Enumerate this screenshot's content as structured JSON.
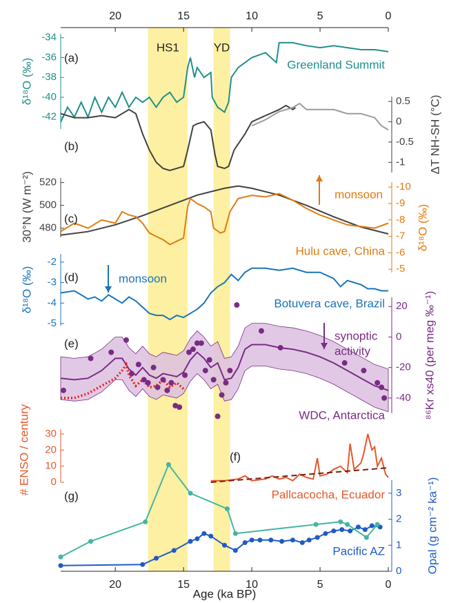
{
  "chart_data": [
    {
      "type": "line",
      "y_axis_side": "left",
      "ylabel": "δ¹⁸O (‰)",
      "ylim": [
        -43.2,
        -33.6
      ],
      "yticks": [
        -42,
        -40,
        -38,
        -36,
        -34
      ],
      "xlim": [
        24,
        0
      ],
      "xticks": [
        20,
        15,
        10,
        5,
        0
      ],
      "bands": [
        {
          "label": "HS1",
          "range": [
            17.6,
            14.7
          ],
          "color": "#fdf0a2"
        },
        {
          "label": "YD",
          "range": [
            12.8,
            11.6
          ],
          "color": "#fdf0a2"
        }
      ],
      "series": [
        {
          "color": "#1f8f8c",
          "x": [
            24,
            23.5,
            23,
            22.5,
            22,
            21.5,
            21,
            20.5,
            20,
            19.5,
            19,
            18.5,
            18,
            17.5,
            17,
            16.5,
            16,
            15.5,
            15,
            14.7,
            14.5,
            14.2,
            14,
            13.5,
            13,
            12.9,
            12.5,
            12,
            11.7,
            11.5,
            11,
            10.5,
            10,
            9,
            8.2,
            8,
            7,
            6,
            5,
            4,
            3,
            2,
            1,
            0
          ],
          "values": [
            -42.5,
            -41,
            -42,
            -40.5,
            -42,
            -40,
            -41.5,
            -40,
            -41,
            -39.5,
            -41,
            -40,
            -40.5,
            -40,
            -41,
            -40,
            -39.5,
            -40.5,
            -40,
            -37,
            -36,
            -38,
            -37,
            -38,
            -37.5,
            -40,
            -41,
            -41.5,
            -40.5,
            -38,
            -37,
            -36.5,
            -36,
            -35.5,
            -36.5,
            -34.5,
            -34.5,
            -34.8,
            -35,
            -34.8,
            -35,
            -35.2,
            -35.2,
            -35.4
          ]
        }
      ],
      "annotations": [
        {
          "text": "(a)",
          "color": "#222"
        },
        {
          "text": "Greenland Summit",
          "color": "#1f8f8c"
        }
      ]
    },
    {
      "type": "line",
      "y_axis_side": "right",
      "ylabel": "ΔT NH-SH (°C)",
      "ylim": [
        -1.25,
        0.62
      ],
      "yticks": [
        0.5,
        0,
        -0.5,
        -1
      ],
      "series": [
        {
          "color": "#404040",
          "x": [
            24,
            23,
            22,
            21,
            20,
            19,
            18.5,
            18,
            17.5,
            17,
            16.5,
            16,
            15.5,
            15,
            14.7,
            14.3,
            14,
            13.5,
            13,
            12.7,
            12.5,
            12,
            11.7,
            11.3,
            10.5,
            10,
            9,
            8,
            7.5,
            7,
            6.8
          ],
          "values": [
            0.2,
            0.1,
            0.1,
            0.15,
            0.1,
            0.3,
            0.2,
            -0.3,
            -0.7,
            -1,
            -1.15,
            -1.2,
            -1.15,
            -1.1,
            -0.7,
            -0.1,
            -0.05,
            0,
            -0.2,
            -0.8,
            -1.1,
            -1.15,
            -1.1,
            -0.7,
            -0.3,
            0,
            0.15,
            0.3,
            0.4,
            0.3,
            0.35
          ]
        },
        {
          "color": "#9a9a9a",
          "x": [
            10,
            9,
            8,
            7,
            6.5,
            6,
            5,
            4,
            3,
            2,
            1,
            0.5,
            0
          ],
          "values": [
            -0.1,
            0.05,
            0.25,
            0.35,
            0.45,
            0.3,
            0.3,
            0.3,
            0.2,
            0.2,
            0.1,
            -0.1,
            -0.2
          ]
        }
      ],
      "annotations": [
        {
          "text": "(b)",
          "color": "#222"
        }
      ]
    },
    {
      "type": "line",
      "y_axis_side": "left",
      "ylabel": "30°N (W m⁻²)",
      "ylim": [
        472,
        524
      ],
      "yticks": [
        480,
        500,
        520
      ],
      "y2label": "δ¹⁸O (‰)",
      "y2lim": [
        -4.8,
        -10.3
      ],
      "y2ticks": [
        -10,
        -9,
        -8,
        -7,
        -6,
        -5
      ],
      "series": [
        {
          "color": "#404040",
          "x": [
            24,
            22,
            20,
            18,
            16,
            14,
            12,
            11,
            10,
            8,
            6,
            4,
            2,
            0
          ],
          "values": [
            474,
            477,
            483,
            491,
            500,
            509,
            515,
            517,
            515,
            509,
            500,
            490,
            481,
            475
          ]
        },
        {
          "color": "#e07b10",
          "axis": "y2",
          "x": [
            24,
            23,
            22,
            21,
            20,
            19.5,
            19,
            18.5,
            18,
            17.5,
            17,
            16.5,
            16,
            15.5,
            15,
            14.7,
            14.5,
            14,
            13.5,
            13,
            12.8,
            12.3,
            12,
            11.6,
            11,
            10,
            9,
            8,
            7,
            6,
            5,
            4,
            3,
            2,
            1,
            0
          ],
          "values": [
            -7.3,
            -7.8,
            -7.5,
            -8,
            -7.8,
            -8.5,
            -8.3,
            -8.2,
            -7.8,
            -7.2,
            -7,
            -6.8,
            -6.5,
            -6.7,
            -6.9,
            -8.8,
            -9.3,
            -9,
            -8.8,
            -8.5,
            -7.5,
            -7.2,
            -7.3,
            -8.5,
            -9.3,
            -9.5,
            -9.4,
            -9.6,
            -9.2,
            -8.7,
            -8.3,
            -8,
            -7.7,
            -7.6,
            -7.5,
            -7.8
          ]
        }
      ],
      "annotations": [
        {
          "text": "(c)",
          "color": "#222"
        },
        {
          "text": "monsoon",
          "color": "#e07b10"
        },
        {
          "text": "Hulu cave, China",
          "color": "#e07b10"
        }
      ]
    },
    {
      "type": "line",
      "y_axis_side": "left",
      "ylabel": "δ¹⁸O (‰)",
      "ylim": [
        -5.1,
        -1.6
      ],
      "yticks": [
        -5,
        -4,
        -3,
        -2
      ],
      "series": [
        {
          "color": "#1a73b8",
          "x": [
            24,
            23,
            22.5,
            22,
            21.5,
            21,
            20.5,
            20,
            19.5,
            19,
            18.5,
            18,
            17.5,
            17,
            16.5,
            16,
            15.5,
            15,
            14.5,
            14,
            13.5,
            13,
            12.5,
            12,
            11.5,
            11,
            10.5,
            10,
            9,
            8,
            7,
            6,
            5,
            4,
            3.5,
            3,
            2,
            1.5,
            1,
            0.5,
            0
          ],
          "values": [
            -3.5,
            -3.4,
            -3.6,
            -3.8,
            -3.7,
            -3.9,
            -3.6,
            -3.8,
            -4,
            -3.7,
            -3.9,
            -4.2,
            -4.5,
            -4.6,
            -4.6,
            -4.8,
            -4.6,
            -4.7,
            -4.5,
            -4.3,
            -4,
            -3.5,
            -3.2,
            -3,
            -2.6,
            -2.9,
            -2.5,
            -2.3,
            -2.3,
            -2.4,
            -2.3,
            -2.5,
            -2.5,
            -2.8,
            -3.2,
            -2.9,
            -3.1,
            -3.3,
            -3.3,
            -3.4,
            -3.4
          ]
        }
      ],
      "annotations": [
        {
          "text": "(d)",
          "color": "#222"
        },
        {
          "text": "monsoon",
          "color": "#1a73b8"
        },
        {
          "text": "Botuvera cave, Brazil",
          "color": "#1a73b8"
        }
      ]
    },
    {
      "type": "line",
      "y_axis_side": "right",
      "ylabel": "⁸⁶Kr xs40 (per meg ‰⁻¹)",
      "ylim": [
        -50,
        26
      ],
      "yticks": [
        20,
        0,
        -20,
        -40
      ],
      "band": {
        "color": "#dcbfe0",
        "x": [
          24,
          23,
          22,
          21,
          20,
          19.5,
          19,
          18.5,
          18,
          17.5,
          17,
          16.5,
          16,
          15.5,
          15,
          14.5,
          14,
          13.5,
          13,
          12.5,
          12,
          11.5,
          11,
          10.5,
          10,
          9,
          8,
          7,
          6,
          5,
          4,
          3,
          2,
          1,
          0
        ],
        "upper": [
          -13,
          -14,
          -13,
          -8,
          0,
          0,
          -7,
          -11,
          -6,
          -11,
          -13,
          -10,
          -11,
          -12,
          -9,
          -1,
          4,
          0,
          -6,
          -3,
          -14,
          -13,
          -6,
          6,
          9,
          9,
          7,
          6,
          4,
          1,
          -3,
          -8,
          -13,
          -18,
          -21
        ],
        "lower": [
          -41,
          -42,
          -41,
          -36,
          -28,
          -28,
          -35,
          -39,
          -34,
          -39,
          -41,
          -38,
          -39,
          -40,
          -37,
          -29,
          -24,
          -28,
          -34,
          -31,
          -42,
          -41,
          -34,
          -22,
          -19,
          -19,
          -21,
          -22,
          -24,
          -27,
          -31,
          -36,
          -41,
          -46,
          -49
        ]
      },
      "series": [
        {
          "color": "#7a2b84",
          "x": [
            24,
            23,
            22,
            21,
            20,
            19.5,
            19,
            18.5,
            18,
            17.5,
            17,
            16.5,
            16,
            15.5,
            15,
            14.5,
            14,
            13.5,
            13,
            12.5,
            12,
            11.5,
            11,
            10.5,
            10,
            9,
            8,
            7,
            6,
            5,
            4,
            3,
            2,
            1,
            0
          ],
          "values": [
            -27,
            -28,
            -27,
            -22,
            -14,
            -14,
            -21,
            -25,
            -20,
            -25,
            -27,
            -24,
            -25,
            -26,
            -23,
            -15,
            -10,
            -14,
            -20,
            -17,
            -28,
            -27,
            -20,
            -8,
            -5,
            -5,
            -7,
            -8,
            -10,
            -13,
            -17,
            -22,
            -27,
            -32,
            -35
          ]
        },
        {
          "color": "#e0201b",
          "style": "dotted",
          "x": [
            24,
            23,
            22,
            21,
            20,
            19.5,
            19.2,
            19,
            18.5,
            18,
            17.5,
            17,
            16.5,
            16,
            15.5,
            15
          ],
          "values": [
            -40,
            -40,
            -37,
            -32,
            -27,
            -22,
            -18,
            -25,
            -32,
            -28,
            -33,
            -32,
            -28,
            -33,
            -30,
            -34
          ]
        },
        {
          "color": "#7a2b84",
          "mode": "markers",
          "x": [
            23.8,
            21.8,
            20.3,
            19.2,
            18.8,
            18.3,
            17.9,
            17.6,
            17.2,
            16.9,
            16.5,
            16.2,
            15.9,
            15.6,
            15.3,
            14.9,
            14.6,
            14.3,
            14,
            13.7,
            13.4,
            13.1,
            12.8,
            12.5,
            12.2,
            11.9,
            11.6,
            11.1,
            9.3,
            7.9,
            3.2,
            1.8,
            0.8,
            0.5,
            0.3
          ],
          "values": [
            -35,
            -14,
            -10,
            -2,
            -24,
            -18,
            -28,
            -30,
            -20,
            -33,
            -28,
            -35,
            -30,
            -45,
            -46,
            -25,
            -10,
            -8,
            -4,
            -4,
            -22,
            -15,
            -28,
            -52,
            -38,
            -30,
            -22,
            21,
            4,
            -7,
            -17,
            -22,
            -30,
            -33,
            -40
          ]
        }
      ],
      "annotations": [
        {
          "text": "(e)",
          "color": "#222"
        },
        {
          "text": "synoptic",
          "color": "#7a2b84"
        },
        {
          "text": "activity",
          "color": "#7a2b84"
        },
        {
          "text": "WDC, Antarctica",
          "color": "#7a2b84"
        }
      ]
    },
    {
      "type": "line",
      "y_axis_side": "left",
      "ylabel": "# ENSO / century",
      "ylim": [
        0,
        33
      ],
      "yticks": [
        0,
        10,
        20,
        30
      ],
      "series": [
        {
          "color": "#e5582a",
          "x": [
            13,
            12,
            11,
            10.5,
            10,
            9,
            8.5,
            8,
            7.5,
            7,
            6.5,
            6,
            5.5,
            5.2,
            5,
            4.5,
            4,
            3.5,
            3,
            2.8,
            2.5,
            2,
            1.8,
            1.5,
            1.2,
            1,
            0.8,
            0.5,
            0.2,
            0
          ],
          "values": [
            1,
            1,
            2,
            4,
            1,
            2,
            4,
            2,
            3,
            1,
            5,
            3,
            2,
            15,
            4,
            5,
            8,
            10,
            6,
            24,
            8,
            12,
            18,
            30,
            20,
            22,
            10,
            15,
            5,
            3
          ]
        },
        {
          "color": "#7a1a10",
          "style": "dashed",
          "x": [
            13,
            0
          ],
          "values": [
            0,
            9
          ]
        }
      ],
      "annotations": [
        {
          "text": "(f)",
          "color": "#222"
        },
        {
          "text": "Pallcacocha, Ecuador",
          "color": "#e5582a"
        }
      ]
    },
    {
      "type": "line",
      "y_axis_side": "right",
      "ylabel": "Opal (g cm⁻² ka⁻¹)",
      "ylim": [
        0,
        3.5
      ],
      "yticks": [
        0,
        1,
        2,
        3
      ],
      "xlim": [
        24,
        0
      ],
      "xticks": [
        20,
        15,
        10,
        5,
        0
      ],
      "xlabel": "Age (ka BP)",
      "series": [
        {
          "color": "#1f5bc4",
          "markers": true,
          "x": [
            24,
            18,
            17,
            15.7,
            14.5,
            14,
            13.5,
            13,
            12,
            11.2,
            10.5,
            10,
            9.4,
            8.6,
            7.8,
            7,
            6.3,
            5.8,
            5.2,
            4.6,
            4,
            3.4,
            2.8,
            2.2,
            1.7,
            1.2,
            0.6
          ],
          "values": [
            0.22,
            0.26,
            0.5,
            0.8,
            1.15,
            1.25,
            1.45,
            1.35,
            1,
            0.8,
            1.1,
            1.2,
            1.2,
            1.2,
            1.15,
            1.2,
            1.1,
            1.2,
            1.3,
            1.45,
            1.55,
            1.6,
            1.55,
            1.7,
            1.6,
            1.75,
            1.7
          ]
        },
        {
          "color": "#45b5a3",
          "markers": true,
          "x": [
            24,
            21.8,
            17.8,
            16.1,
            14.5,
            11.8,
            11.2,
            5.3,
            3.5,
            3,
            1.6,
            0.8
          ],
          "values": [
            0.55,
            1.15,
            1.9,
            4.1,
            3,
            2.4,
            1.45,
            1.8,
            1.9,
            1.8,
            1.3,
            1.8
          ]
        }
      ],
      "annotations": [
        {
          "text": "(g)",
          "color": "#222"
        },
        {
          "text": "Pacific AZ",
          "color": "#1f5bc4"
        }
      ]
    }
  ]
}
